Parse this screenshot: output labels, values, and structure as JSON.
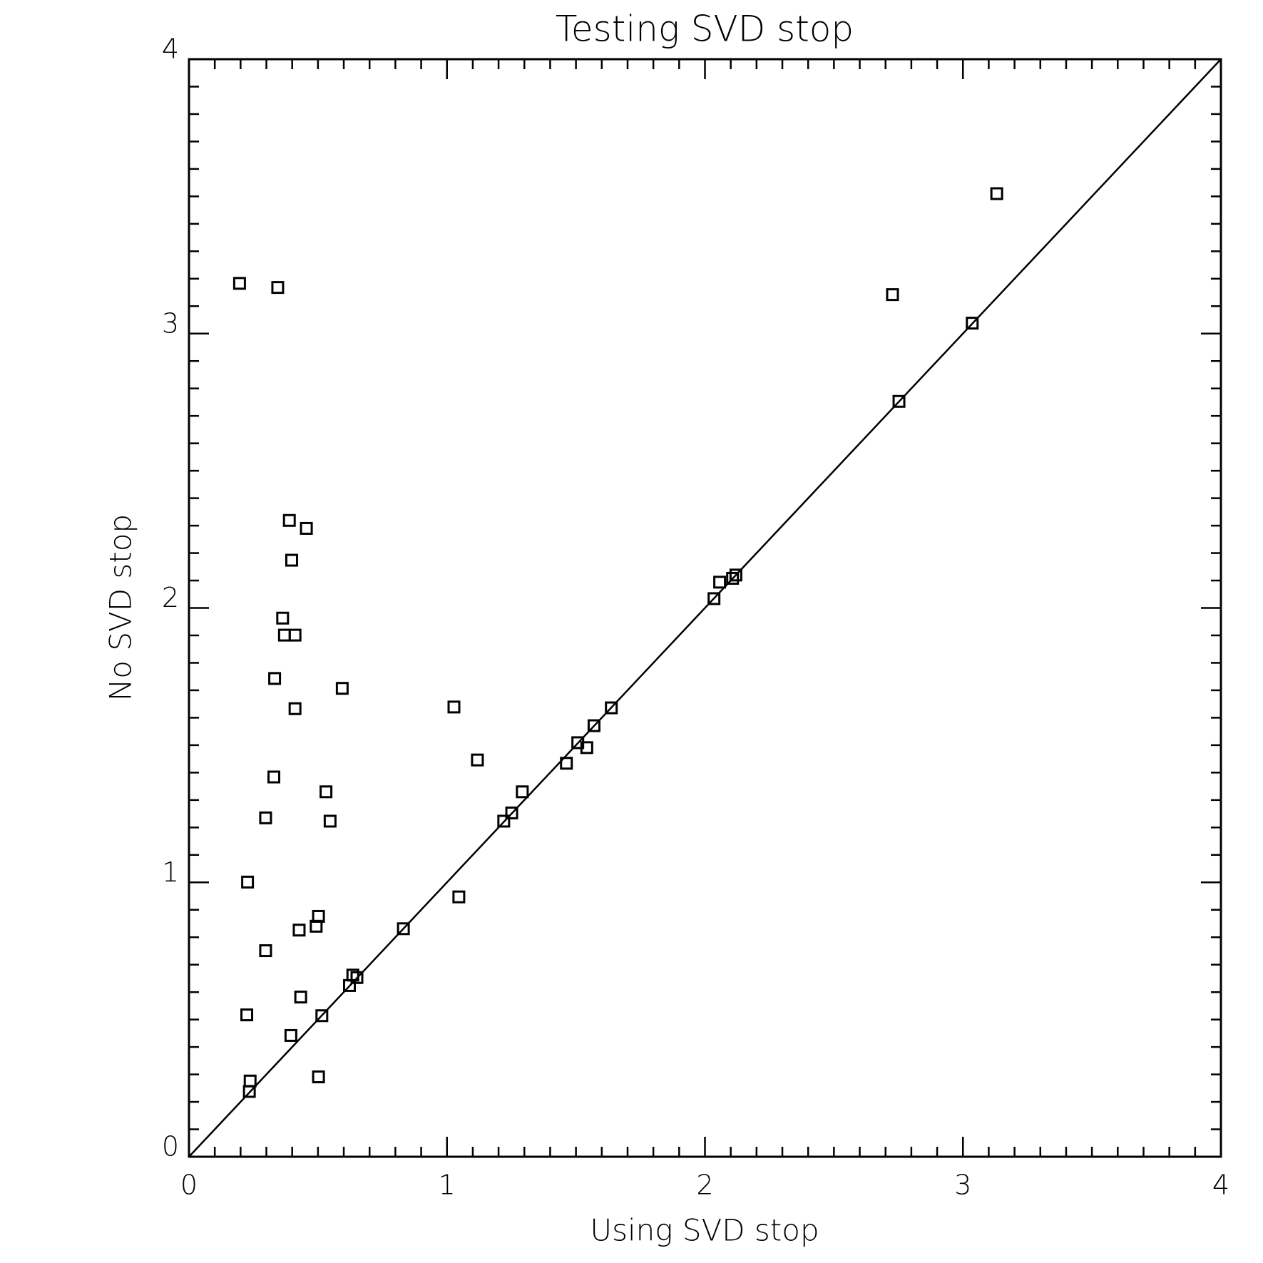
{
  "chart_data": {
    "type": "scatter",
    "title": "Testing SVD stop",
    "x_label": "Using SVD stop",
    "y_label": "No SVD stop",
    "xlim": [
      0,
      4
    ],
    "ylim": [
      0,
      4
    ],
    "xticks": [
      0,
      1,
      2,
      3,
      4
    ],
    "yticks": [
      0,
      1,
      2,
      3,
      4
    ],
    "color": "#000000",
    "diagonal": true,
    "x": [
      0.196,
      0.344,
      3.131,
      2.727,
      3.036,
      2.752,
      0.389,
      0.455,
      0.398,
      0.363,
      0.37,
      0.411,
      0.332,
      0.594,
      0.411,
      1.027,
      1.118,
      0.329,
      0.531,
      0.297,
      0.547,
      0.227,
      1.046,
      0.502,
      0.493,
      0.427,
      0.297,
      0.831,
      0.635,
      0.651,
      0.622,
      0.433,
      0.224,
      0.515,
      0.395,
      0.502,
      0.237,
      0.234,
      1.22,
      1.251,
      1.292,
      1.463,
      1.507,
      1.542,
      1.57,
      1.637,
      2.035,
      2.057,
      2.107,
      2.12
    ],
    "values": [
      3.183,
      3.168,
      3.51,
      3.142,
      3.038,
      2.753,
      2.319,
      2.29,
      2.174,
      1.963,
      1.901,
      1.901,
      1.743,
      1.707,
      1.633,
      1.639,
      1.446,
      1.384,
      1.33,
      1.235,
      1.223,
      1.001,
      0.947,
      0.876,
      0.84,
      0.826,
      0.751,
      0.831,
      0.662,
      0.653,
      0.624,
      0.582,
      0.517,
      0.514,
      0.442,
      0.291,
      0.276,
      0.238,
      1.223,
      1.253,
      1.33,
      1.434,
      1.509,
      1.491,
      1.571,
      1.636,
      2.034,
      2.094,
      2.108,
      2.12
    ]
  }
}
